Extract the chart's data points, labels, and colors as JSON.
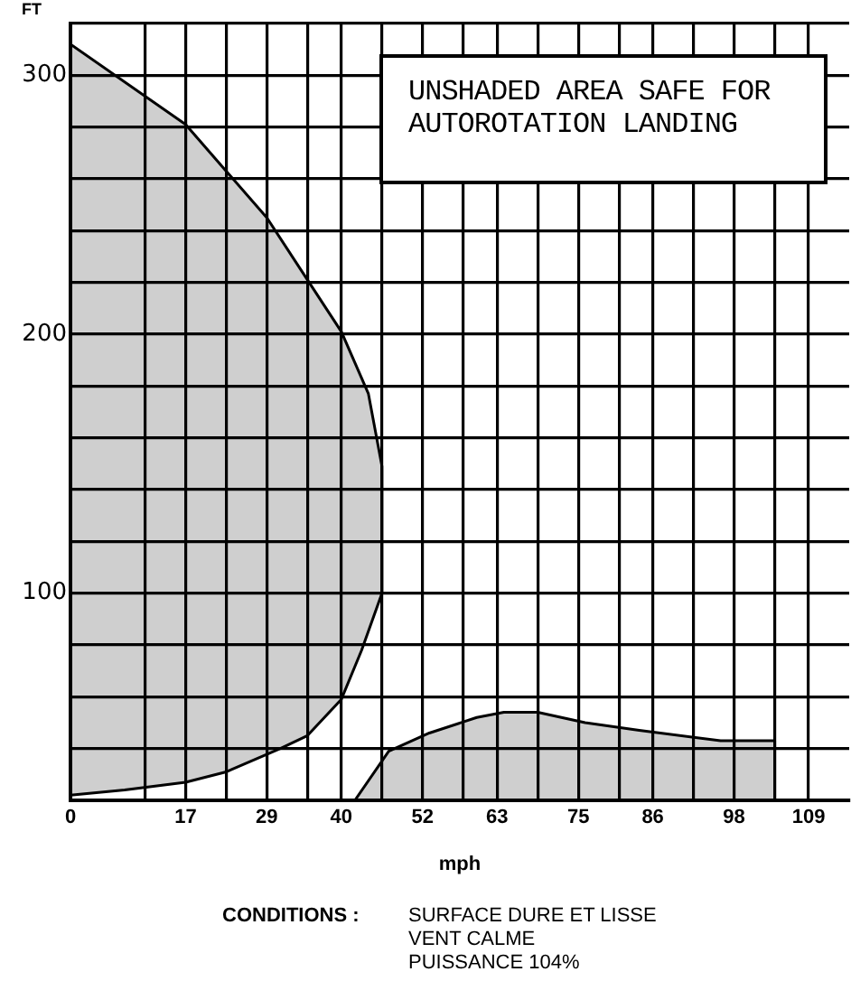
{
  "chart_data": {
    "type": "area",
    "xlabel": "mph",
    "ylabel": "FT",
    "xlim": [
      0,
      115
    ],
    "xticks": [
      0,
      {
        "value": 11,
        "label": null
      },
      17,
      {
        "value": 23,
        "label": null
      },
      29,
      {
        "value": 35,
        "label": null
      },
      40,
      {
        "value": 46,
        "label": null
      },
      52,
      {
        "value": 58,
        "label": null
      },
      63,
      {
        "value": 69,
        "label": null
      },
      75,
      {
        "value": 81,
        "label": null
      },
      86,
      {
        "value": 92,
        "label": null
      },
      98,
      {
        "value": 104,
        "label": null
      },
      109
    ],
    "ylim": [
      20,
      320
    ],
    "yticks": [
      {
        "value": 20,
        "label": null
      },
      {
        "value": 40,
        "label": null
      },
      {
        "value": 60,
        "label": null
      },
      {
        "value": 80,
        "label": null
      },
      100,
      {
        "value": 120,
        "label": null
      },
      {
        "value": 140,
        "label": null
      },
      {
        "value": 160,
        "label": null
      },
      {
        "value": 180,
        "label": null
      },
      200,
      {
        "value": 220,
        "label": null
      },
      {
        "value": 240,
        "label": null
      },
      {
        "value": 260,
        "label": null
      },
      {
        "value": 280,
        "label": null
      },
      300,
      {
        "value": 320,
        "label": null
      }
    ],
    "grid": true,
    "legend": false,
    "marker": "none",
    "series": [
      {
        "color": "#000000",
        "x": [
          0,
          17,
          23,
          29,
          34,
          40,
          44,
          46,
          46,
          43,
          40,
          35,
          31,
          23,
          17,
          8,
          0
        ],
        "values": [
          312,
          281,
          263,
          245,
          225,
          201,
          177,
          149,
          100,
          78,
          59,
          45,
          40,
          31,
          27,
          24,
          22
        ]
      },
      {
        "color": "#000000",
        "x": [
          42,
          47,
          53,
          60,
          64,
          69,
          76,
          84,
          96,
          104,
          104
        ],
        "values": [
          20,
          39,
          46,
          52,
          54,
          54,
          50,
          47,
          43,
          43,
          20
        ]
      }
    ],
    "annotations": [
      "UNSHADED AREA SAFE FOR AUTOROTATION LANDING",
      "CONDITIONS :",
      "SURFACE DURE ET LISSE",
      "VENT CALME",
      "PUISSANCE 104%"
    ]
  }
}
